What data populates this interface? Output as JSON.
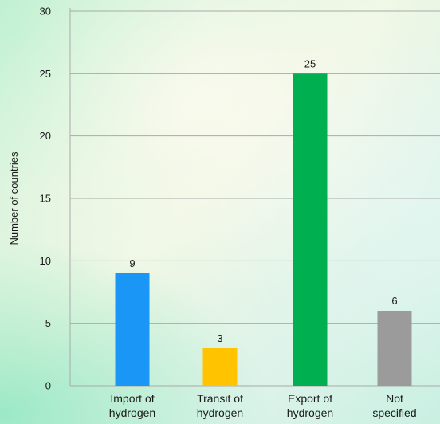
{
  "chart_data": {
    "type": "bar",
    "ylabel": "Number of countries",
    "ylim": [
      0,
      30
    ],
    "yticks": [
      0,
      5,
      10,
      15,
      20,
      25,
      30
    ],
    "grid": "horizontal",
    "categories": [
      [
        "Import of",
        "hydrogen"
      ],
      [
        "Transit of",
        "hydrogen"
      ],
      [
        "Export of",
        "hydrogen"
      ],
      [
        "Not",
        "specified"
      ]
    ],
    "values": [
      9,
      3,
      25,
      6
    ],
    "value_labels": [
      "9",
      "3",
      "25",
      "6"
    ],
    "colors": [
      "#1a96f6",
      "#ffc300",
      "#00b050",
      "#9b9b9b"
    ],
    "grid_color": "#a9aaa9",
    "text_color": "#1a1a1a"
  }
}
